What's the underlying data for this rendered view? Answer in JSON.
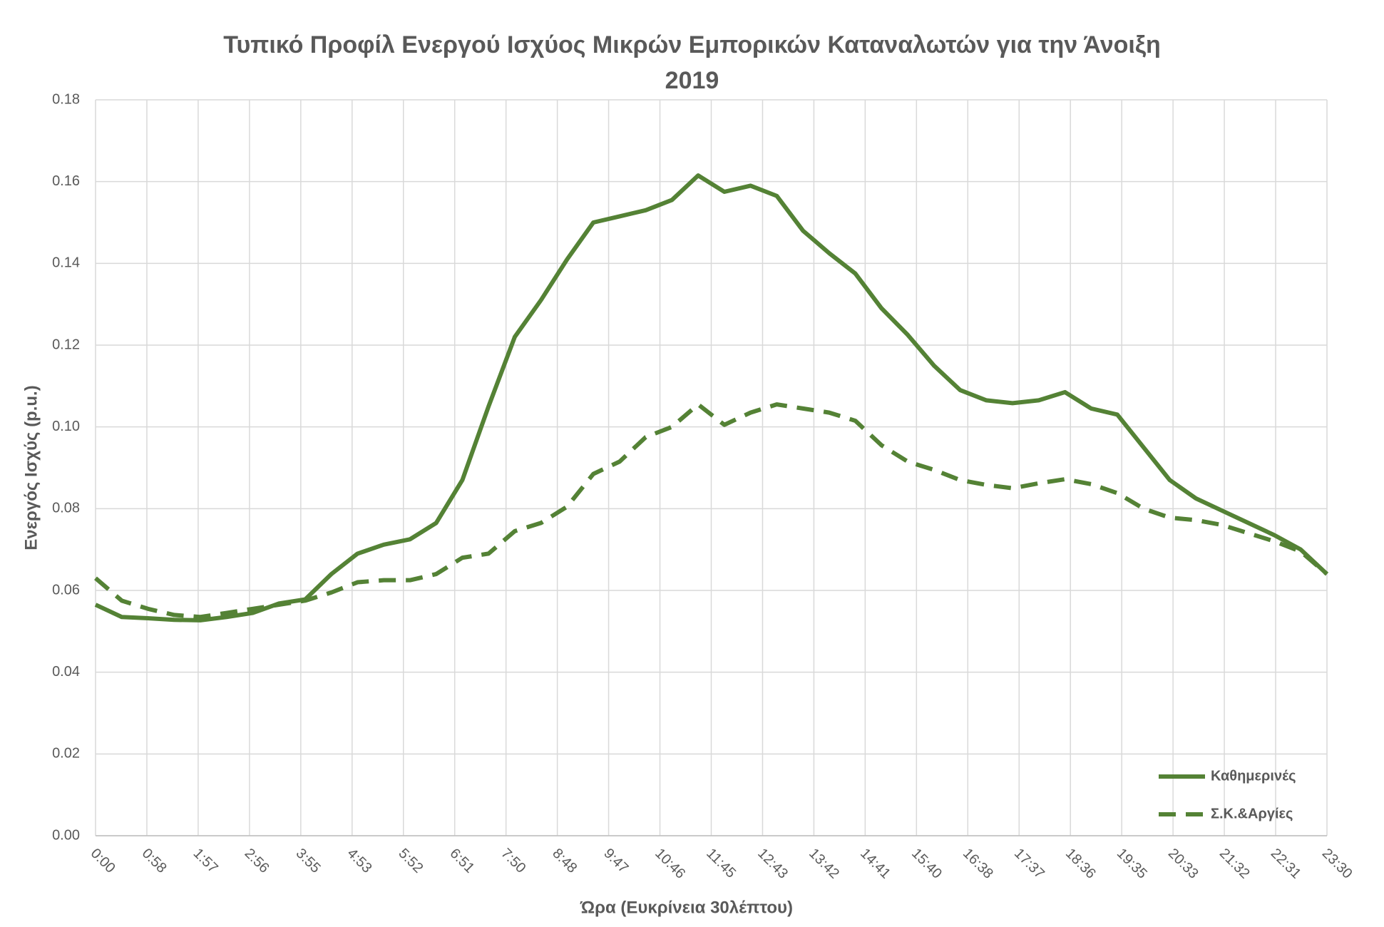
{
  "chart_data": {
    "type": "line",
    "title": "Τυπικό Προφίλ Ενεργού Ισχύος Μικρών Εμπορικών Καταναλωτών για την Άνοιξη 2019",
    "x_label": "Ώρα (Ευκρίνεια 30λέπτου)",
    "y_label": "Ενεργός Ισχύς (p.u.)",
    "x": [
      0,
      30,
      60,
      90,
      120,
      150,
      180,
      210,
      240,
      270,
      300,
      330,
      360,
      390,
      420,
      450,
      480,
      510,
      540,
      570,
      600,
      630,
      660,
      690,
      720,
      750,
      780,
      810,
      840,
      870,
      900,
      930,
      960,
      990,
      1020,
      1050,
      1080,
      1110,
      1140,
      1170,
      1200,
      1230,
      1260,
      1290,
      1320,
      1350,
      1380,
      1410
    ],
    "series": [
      {
        "name": "Καθημερινές",
        "color": "#548235",
        "dash": false,
        "values": [
          0.0565,
          0.0535,
          0.0532,
          0.0528,
          0.0527,
          0.0535,
          0.0545,
          0.0568,
          0.0578,
          0.064,
          0.069,
          0.0712,
          0.0725,
          0.0765,
          0.087,
          0.105,
          0.122,
          0.131,
          0.141,
          0.15,
          0.1515,
          0.153,
          0.1555,
          0.1615,
          0.1575,
          0.159,
          0.1565,
          0.148,
          0.1425,
          0.1375,
          0.129,
          0.1225,
          0.115,
          0.109,
          0.1065,
          0.1058,
          0.1065,
          0.1085,
          0.1045,
          0.103,
          0.095,
          0.087,
          0.0825,
          0.0795,
          0.0765,
          0.0735,
          0.07,
          0.064
        ]
      },
      {
        "name": "Σ.Κ.&Αργίες",
        "color": "#548235",
        "dash": true,
        "values": [
          0.063,
          0.0575,
          0.0555,
          0.054,
          0.0535,
          0.0545,
          0.0555,
          0.0565,
          0.0575,
          0.0595,
          0.062,
          0.0625,
          0.0625,
          0.064,
          0.068,
          0.069,
          0.0745,
          0.0765,
          0.0805,
          0.0885,
          0.0915,
          0.0975,
          0.1,
          0.1055,
          0.1005,
          0.1035,
          0.1055,
          0.1045,
          0.1035,
          0.1015,
          0.0955,
          0.0915,
          0.0895,
          0.087,
          0.0858,
          0.085,
          0.0862,
          0.0872,
          0.086,
          0.0838,
          0.08,
          0.0778,
          0.0772,
          0.076,
          0.074,
          0.072,
          0.0695,
          0.064
        ]
      }
    ],
    "xlim": [
      0,
      1410
    ],
    "xticks": [
      {
        "value": 0,
        "label": "0:00"
      },
      {
        "value": 58.75,
        "label": "0:58"
      },
      {
        "value": 117.5,
        "label": "1:57"
      },
      {
        "value": 176.25,
        "label": "2:56"
      },
      {
        "value": 235,
        "label": "3:55"
      },
      {
        "value": 293.75,
        "label": "4:53"
      },
      {
        "value": 352.5,
        "label": "5:52"
      },
      {
        "value": 411.25,
        "label": "6:51"
      },
      {
        "value": 470,
        "label": "7:50"
      },
      {
        "value": 528.75,
        "label": "8:48"
      },
      {
        "value": 587.5,
        "label": "9:47"
      },
      {
        "value": 646.25,
        "label": "10:46"
      },
      {
        "value": 705,
        "label": "11:45"
      },
      {
        "value": 763.75,
        "label": "12:43"
      },
      {
        "value": 822.5,
        "label": "13:42"
      },
      {
        "value": 881.25,
        "label": "14:41"
      },
      {
        "value": 940,
        "label": "15:40"
      },
      {
        "value": 998.75,
        "label": "16:38"
      },
      {
        "value": 1057.5,
        "label": "17:37"
      },
      {
        "value": 1116.25,
        "label": "18:36"
      },
      {
        "value": 1175,
        "label": "19:35"
      },
      {
        "value": 1233.75,
        "label": "20:33"
      },
      {
        "value": 1292.5,
        "label": "21:32"
      },
      {
        "value": 1351.25,
        "label": "22:31"
      },
      {
        "value": 1410,
        "label": "23:30"
      }
    ],
    "ylim": [
      0,
      0.18
    ],
    "yticks": [
      {
        "value": 0,
        "label": "0.00"
      },
      {
        "value": 0.02,
        "label": "0.02"
      },
      {
        "value": 0.04,
        "label": "0.04"
      },
      {
        "value": 0.06,
        "label": "0.06"
      },
      {
        "value": 0.08,
        "label": "0.08"
      },
      {
        "value": 0.1,
        "label": "0.10"
      },
      {
        "value": 0.12,
        "label": "0.12"
      },
      {
        "value": 0.14,
        "label": "0.14"
      },
      {
        "value": 0.16,
        "label": "0.16"
      },
      {
        "value": 0.18,
        "label": "0.18"
      }
    ],
    "grid": true,
    "legend": "bottom-right"
  }
}
